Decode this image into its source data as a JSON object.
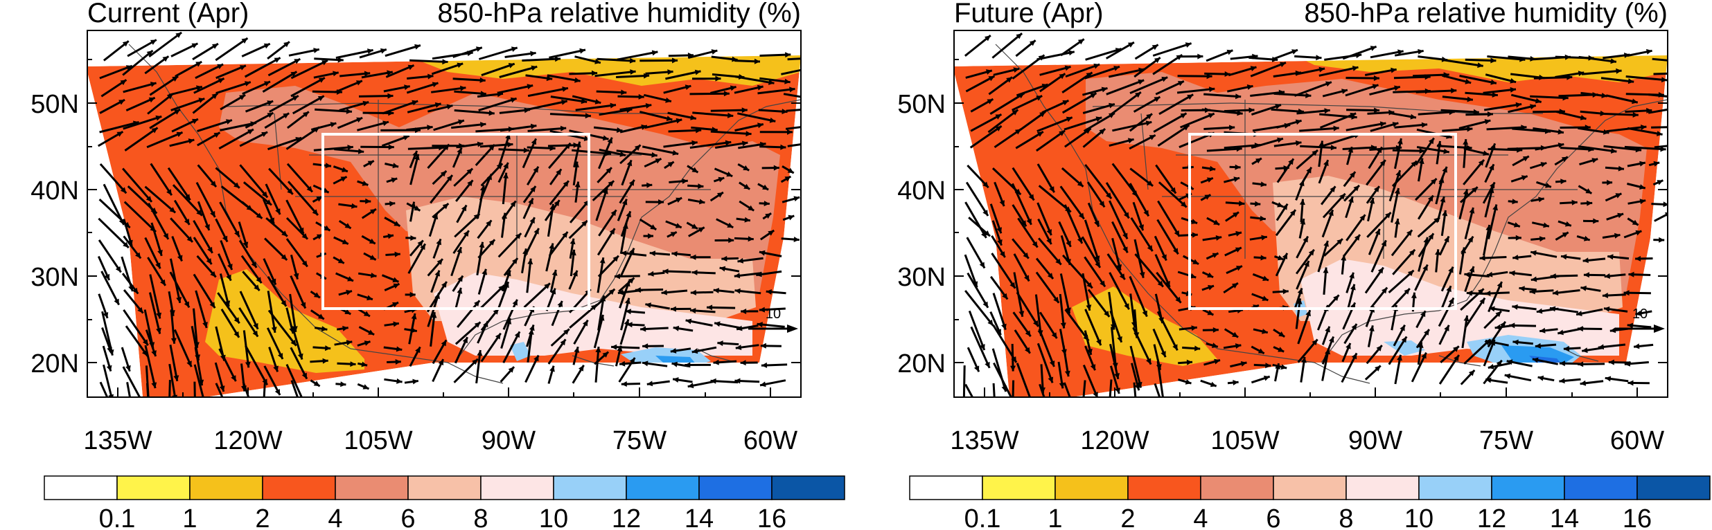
{
  "chart_data": [
    {
      "type": "heatmap",
      "title_left": "Current (Apr)",
      "title_right": "850-hPa relative humidity (%)",
      "x_ticks": [
        "135W",
        "120W",
        "105W",
        "90W",
        "75W",
        "60W"
      ],
      "y_ticks": [
        "50N",
        "40N",
        "30N",
        "20N"
      ],
      "reference_vector": "10",
      "colorbar": {
        "labels": [
          "0.1",
          "1",
          "2",
          "4",
          "6",
          "8",
          "10",
          "12",
          "14",
          "16"
        ],
        "colors": [
          "#ffffff",
          "#fff34a",
          "#f5c11b",
          "#f8561e",
          "#ea8c72",
          "#f7c1a8",
          "#fde5e5",
          "#98d0f8",
          "#2a9bf1",
          "#1e6fe3",
          "#0b56a6"
        ]
      }
    },
    {
      "type": "heatmap",
      "title_left": "Future (Apr)",
      "title_right": "850-hPa relative humidity (%)",
      "x_ticks": [
        "135W",
        "120W",
        "105W",
        "90W",
        "75W",
        "60W"
      ],
      "y_ticks": [
        "50N",
        "40N",
        "30N",
        "20N"
      ],
      "reference_vector": "10",
      "colorbar": {
        "labels": [
          "0.1",
          "1",
          "2",
          "4",
          "6",
          "8",
          "10",
          "12",
          "14",
          "16"
        ],
        "colors": [
          "#ffffff",
          "#fff34a",
          "#f5c11b",
          "#f8561e",
          "#ea8c72",
          "#f7c1a8",
          "#fde5e5",
          "#98d0f8",
          "#2a9bf1",
          "#1e6fe3",
          "#0b56a6"
        ]
      }
    }
  ]
}
